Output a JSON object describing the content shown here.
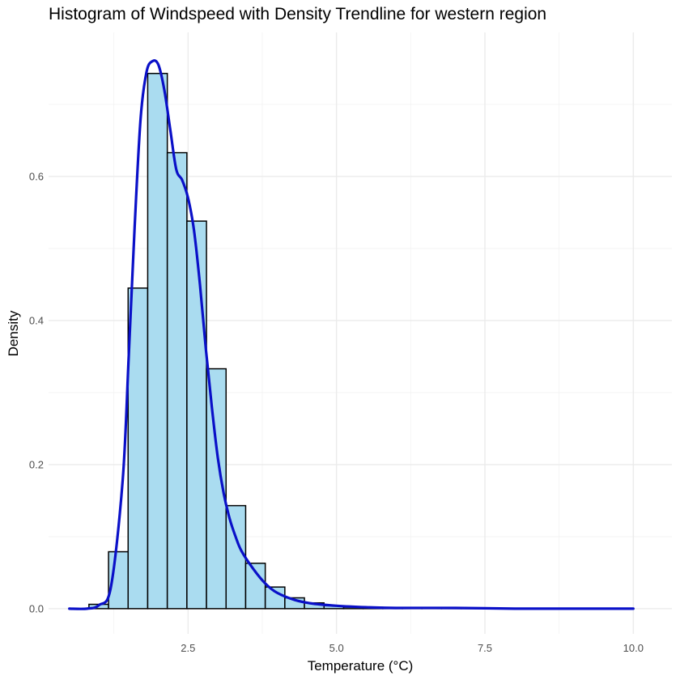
{
  "chart_data": {
    "type": "bar",
    "title": "Histogram of Windspeed with Density Trendline for western region",
    "xlabel": "Temperature (°C)",
    "ylabel": "Density",
    "xlim": [
      0.15,
      10.65
    ],
    "ylim": [
      -0.035,
      0.8
    ],
    "x_ticks": [
      {
        "value": 2.5,
        "label": "2.5"
      },
      {
        "value": 5.0,
        "label": "5.0"
      },
      {
        "value": 7.5,
        "label": "7.5"
      },
      {
        "value": 10.0,
        "label": "10.0"
      }
    ],
    "y_ticks": [
      {
        "value": 0.0,
        "label": "0.0"
      },
      {
        "value": 0.2,
        "label": "0.2"
      },
      {
        "value": 0.4,
        "label": "0.4"
      },
      {
        "value": 0.6,
        "label": "0.6"
      }
    ],
    "grid": true,
    "legend": "none",
    "colors": {
      "bar_fill": "#aadcf0",
      "bar_outline": "#000000",
      "density_line": "#0a10c8"
    },
    "bins": [
      {
        "x0": 0.5,
        "x1": 0.83,
        "value": 0.0
      },
      {
        "x0": 0.83,
        "x1": 1.16,
        "value": 0.006
      },
      {
        "x0": 1.16,
        "x1": 1.49,
        "value": 0.079
      },
      {
        "x0": 1.49,
        "x1": 1.82,
        "value": 0.445
      },
      {
        "x0": 1.82,
        "x1": 2.15,
        "value": 0.743
      },
      {
        "x0": 2.15,
        "x1": 2.48,
        "value": 0.633
      },
      {
        "x0": 2.48,
        "x1": 2.81,
        "value": 0.538
      },
      {
        "x0": 2.81,
        "x1": 3.14,
        "value": 0.333
      },
      {
        "x0": 3.14,
        "x1": 3.47,
        "value": 0.143
      },
      {
        "x0": 3.47,
        "x1": 3.8,
        "value": 0.063
      },
      {
        "x0": 3.8,
        "x1": 4.13,
        "value": 0.03
      },
      {
        "x0": 4.13,
        "x1": 4.46,
        "value": 0.015
      },
      {
        "x0": 4.46,
        "x1": 4.79,
        "value": 0.008
      },
      {
        "x0": 4.79,
        "x1": 5.12,
        "value": 0.004
      },
      {
        "x0": 5.12,
        "x1": 5.45,
        "value": 0.002
      },
      {
        "x0": 5.45,
        "x1": 5.78,
        "value": 0.002
      },
      {
        "x0": 5.78,
        "x1": 6.11,
        "value": 0.001
      },
      {
        "x0": 6.11,
        "x1": 6.44,
        "value": 0.001
      },
      {
        "x0": 6.44,
        "x1": 6.77,
        "value": 0.001
      },
      {
        "x0": 6.77,
        "x1": 7.1,
        "value": 0.001
      },
      {
        "x0": 7.1,
        "x1": 7.43,
        "value": 0.001
      },
      {
        "x0": 7.43,
        "x1": 7.76,
        "value": 0.0
      },
      {
        "x0": 7.76,
        "x1": 8.09,
        "value": 0.0
      },
      {
        "x0": 8.09,
        "x1": 8.42,
        "value": 0.0
      },
      {
        "x0": 8.42,
        "x1": 8.75,
        "value": 0.0
      },
      {
        "x0": 8.75,
        "x1": 9.08,
        "value": 0.0
      },
      {
        "x0": 9.08,
        "x1": 9.41,
        "value": 0.0
      },
      {
        "x0": 9.41,
        "x1": 9.74,
        "value": 0.0
      },
      {
        "x0": 9.74,
        "x1": 10.07,
        "value": 0.0
      },
      {
        "x0": 10.07,
        "x1": 10.3,
        "value": 0.0
      }
    ],
    "density": {
      "x": [
        0.5,
        0.8,
        1.0,
        1.2,
        1.4,
        1.5,
        1.6,
        1.7,
        1.8,
        1.9,
        2.0,
        2.1,
        2.2,
        2.3,
        2.4,
        2.5,
        2.6,
        2.7,
        2.8,
        2.9,
        3.0,
        3.1,
        3.2,
        3.3,
        3.4,
        3.6,
        3.8,
        4.0,
        4.3,
        4.6,
        5.0,
        5.5,
        6.0,
        7.0,
        8.0,
        9.0,
        10.0
      ],
      "y": [
        0.0,
        0.0,
        0.005,
        0.03,
        0.18,
        0.35,
        0.53,
        0.68,
        0.745,
        0.76,
        0.755,
        0.72,
        0.665,
        0.61,
        0.595,
        0.57,
        0.525,
        0.45,
        0.36,
        0.28,
        0.21,
        0.16,
        0.125,
        0.1,
        0.08,
        0.055,
        0.035,
        0.022,
        0.012,
        0.007,
        0.004,
        0.002,
        0.001,
        0.001,
        0.0,
        0.0,
        0.0
      ]
    }
  }
}
